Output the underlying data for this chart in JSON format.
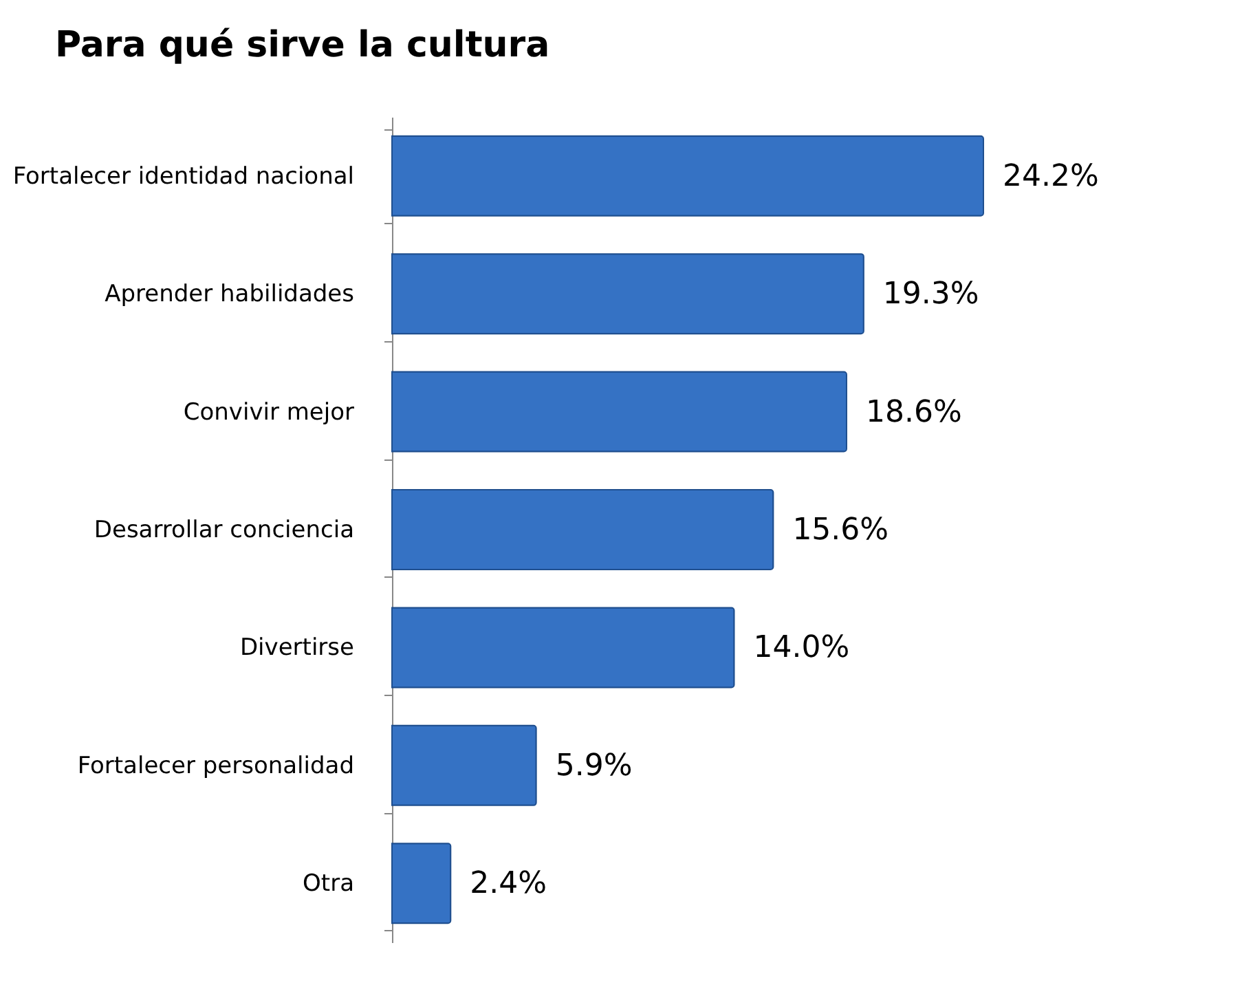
{
  "chart_data": {
    "type": "bar",
    "orientation": "horizontal",
    "title": "Para qué sirve la cultura",
    "categories": [
      "Fortalecer identidad nacional",
      "Aprender habilidades",
      "Convivir mejor",
      "Desarrollar conciencia",
      "Divertirse",
      "Fortalecer personalidad",
      "Otra"
    ],
    "values": [
      24.2,
      19.3,
      18.6,
      15.6,
      14.0,
      5.9,
      2.4
    ],
    "value_labels": [
      "24.2%",
      "19.3%",
      "18.6%",
      "15.6%",
      "14.0%",
      "5.9%",
      "2.4%"
    ],
    "color": "#3572c4",
    "tick_labels": "y"
  }
}
